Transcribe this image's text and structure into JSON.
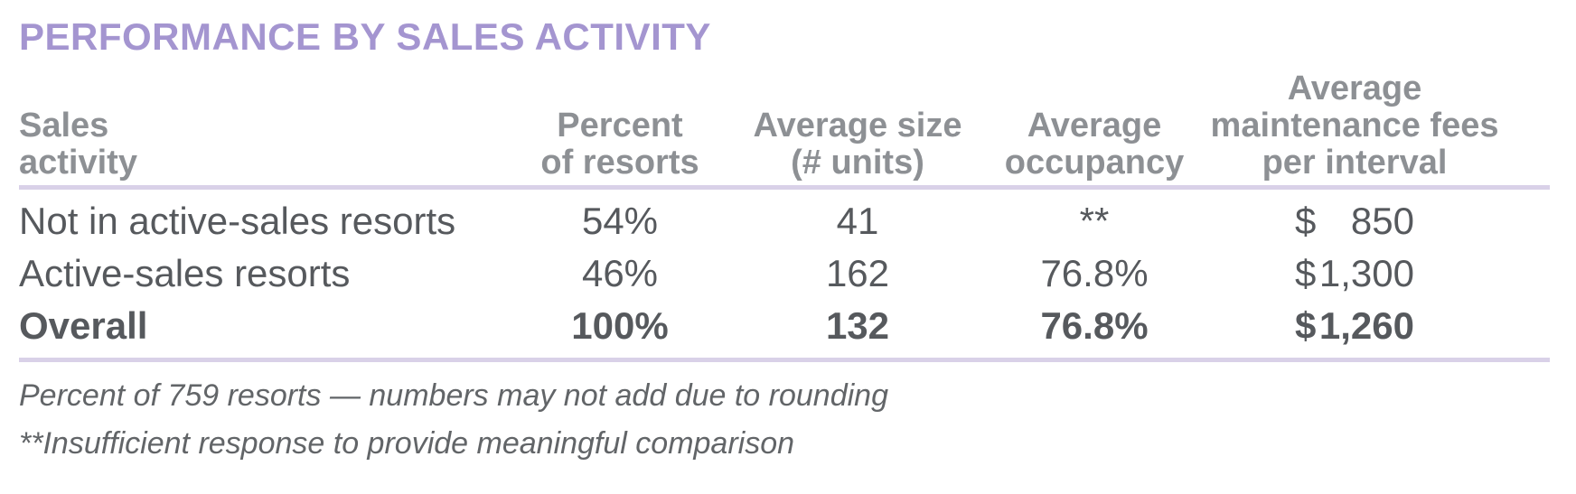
{
  "title": "PERFORMANCE BY SALES ACTIVITY",
  "table": {
    "columns": [
      {
        "id": "sales-activity",
        "lines": [
          "Sales",
          "activity"
        ]
      },
      {
        "id": "percent-of-resorts",
        "lines": [
          "Percent",
          "of resorts"
        ]
      },
      {
        "id": "average-size",
        "lines": [
          "Average size",
          "(# units)"
        ]
      },
      {
        "id": "average-occupancy",
        "lines": [
          "Average",
          "occupancy"
        ]
      },
      {
        "id": "average-maintenance-fees",
        "lines": [
          "Average",
          "maintenance fees",
          "per interval"
        ]
      }
    ],
    "rows": [
      {
        "activity": "Not in active-sales resorts",
        "percent": "54%",
        "size": "41",
        "occupancy": "**",
        "currency": "$",
        "fee": "850",
        "emphasis": false
      },
      {
        "activity": "Active-sales resorts",
        "percent": "46%",
        "size": "162",
        "occupancy": "76.8%",
        "currency": "$",
        "fee": "1,300",
        "emphasis": false
      },
      {
        "activity": "Overall",
        "percent": "100%",
        "size": "132",
        "occupancy": "76.8%",
        "currency": "$",
        "fee": "1,260",
        "emphasis": true
      }
    ]
  },
  "footnotes": [
    "Percent of 759 resorts — numbers may not add due to rounding",
    "**Insufficient response to provide meaningful comparison"
  ],
  "colors": {
    "accent": "#a495d0",
    "divider": "#d9d1e8",
    "header-text": "#8d9094",
    "body-text": "#56595d",
    "footnote-text": "#626568"
  }
}
